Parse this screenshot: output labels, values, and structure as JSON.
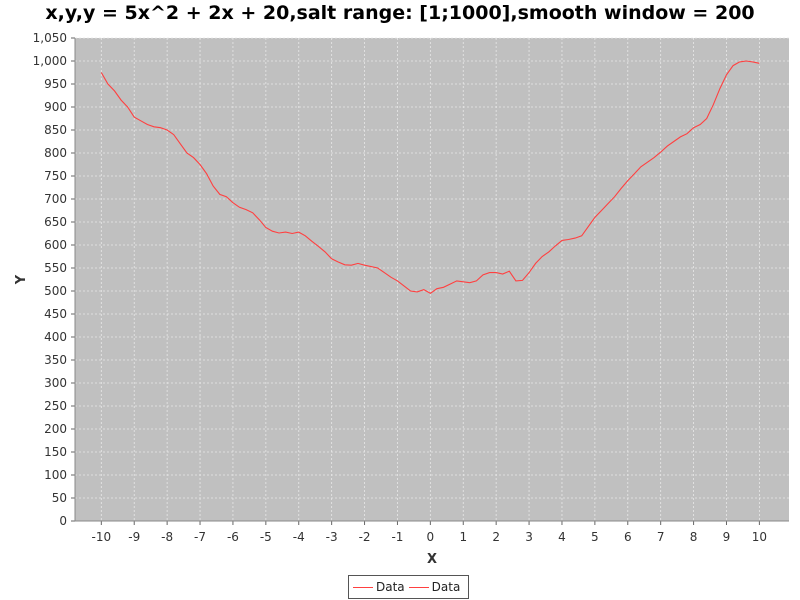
{
  "chart_data": {
    "type": "line",
    "title": "x,y,y = 5x^2 + 2x + 20,salt range: [1;1000],smooth window = 200",
    "xlabel": "X",
    "ylabel": "Y",
    "xlim": [
      -10.8,
      10.9
    ],
    "ylim": [
      0,
      1050
    ],
    "xticks": [
      -10,
      -9,
      -8,
      -7,
      -6,
      -5,
      -4,
      -3,
      -2,
      -1,
      0,
      1,
      2,
      3,
      4,
      5,
      6,
      7,
      8,
      9,
      10
    ],
    "yticks": [
      0,
      50,
      100,
      150,
      200,
      250,
      300,
      350,
      400,
      450,
      500,
      550,
      600,
      650,
      700,
      750,
      800,
      850,
      900,
      950,
      1000,
      1050
    ],
    "grid": true,
    "legend_position": "bottom",
    "colors": {
      "series": "#ff4040",
      "plot_background": "#c0c0c0",
      "grid": "#e8e8e8"
    },
    "series": [
      {
        "name": "Data",
        "x": [
          -10,
          -9.8,
          -9.6,
          -9.4,
          -9.2,
          -9,
          -8.8,
          -8.6,
          -8.4,
          -8.2,
          -8,
          -7.8,
          -7.6,
          -7.4,
          -7.2,
          -7,
          -6.8,
          -6.6,
          -6.4,
          -6.2,
          -6,
          -5.8,
          -5.6,
          -5.4,
          -5.2,
          -5,
          -4.8,
          -4.6,
          -4.4,
          -4.2,
          -4,
          -3.8,
          -3.6,
          -3.4,
          -3.2,
          -3,
          -2.8,
          -2.6,
          -2.4,
          -2.2,
          -2,
          -1.8,
          -1.6,
          -1.4,
          -1.2,
          -1,
          -0.8,
          -0.6,
          -0.4,
          -0.2,
          0,
          0.2,
          0.4,
          0.6,
          0.8,
          1,
          1.2,
          1.4,
          1.6,
          1.8,
          2,
          2.2,
          2.4,
          2.6,
          2.8,
          3,
          3.2,
          3.4,
          3.6,
          3.8,
          4,
          4.2,
          4.4,
          4.6,
          4.8,
          5,
          5.2,
          5.4,
          5.6,
          5.8,
          6,
          6.2,
          6.4,
          6.6,
          6.8,
          7,
          7.2,
          7.4,
          7.6,
          7.8,
          8,
          8.2,
          8.4,
          8.6,
          8.8,
          9,
          9.2,
          9.4,
          9.6,
          9.8,
          10
        ],
        "y": [
          975,
          950,
          935,
          915,
          900,
          878,
          870,
          862,
          857,
          855,
          850,
          840,
          820,
          800,
          790,
          775,
          755,
          728,
          710,
          705,
          692,
          682,
          677,
          670,
          655,
          638,
          630,
          626,
          628,
          625,
          628,
          620,
          608,
          597,
          585,
          570,
          563,
          557,
          556,
          560,
          556,
          553,
          550,
          540,
          530,
          522,
          511,
          500,
          498,
          503,
          495,
          505,
          508,
          515,
          522,
          520,
          518,
          522,
          535,
          540,
          540,
          537,
          543,
          522,
          523,
          540,
          560,
          575,
          585,
          598,
          610,
          612,
          615,
          620,
          640,
          660,
          675,
          690,
          705,
          723,
          740,
          755,
          770,
          780,
          790,
          802,
          815,
          825,
          835,
          842,
          855,
          862,
          875,
          905,
          940,
          970,
          990,
          998,
          1000,
          998,
          995
        ]
      }
    ]
  },
  "legend": {
    "items": [
      {
        "label": "Data"
      },
      {
        "label": "Data"
      }
    ]
  }
}
